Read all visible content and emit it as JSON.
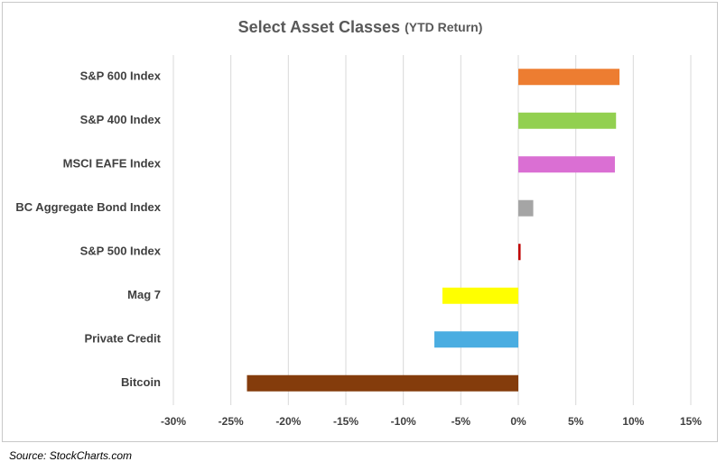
{
  "chart_data": {
    "type": "bar",
    "orientation": "horizontal",
    "title": "Select Asset Classes",
    "subtitle": "(YTD Return)",
    "categories": [
      "S&P 600 Index",
      "S&P 400 Index",
      "MSCI EAFE Index",
      "BC Aggregate Bond Index",
      "S&P 500 Index",
      "Mag 7",
      "Private Credit",
      "Bitcoin"
    ],
    "values": [
      8.8,
      8.5,
      8.4,
      1.3,
      0.2,
      -6.6,
      -7.3,
      -23.6
    ],
    "colors": [
      "#ed7d31",
      "#92d050",
      "#da6fd3",
      "#a5a5a5",
      "#c00000",
      "#ffff00",
      "#4aade1",
      "#843c0c"
    ],
    "xlim": [
      -30,
      15
    ],
    "xticks": [
      {
        "value": -30,
        "label": "-30%"
      },
      {
        "value": -25,
        "label": "-25%"
      },
      {
        "value": -20,
        "label": "-20%"
      },
      {
        "value": -15,
        "label": "-15%"
      },
      {
        "value": -10,
        "label": "-10%"
      },
      {
        "value": -5,
        "label": "-5%"
      },
      {
        "value": 0,
        "label": "0%"
      },
      {
        "value": 5,
        "label": "5%"
      },
      {
        "value": 10,
        "label": "10%"
      },
      {
        "value": 15,
        "label": "15%"
      }
    ],
    "grid": true,
    "source": "Source: StockCharts.com"
  }
}
